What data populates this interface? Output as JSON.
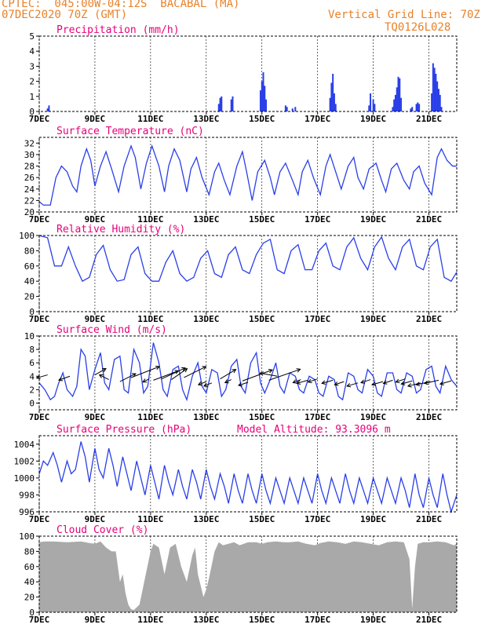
{
  "header": {
    "line1": "CPTEC:  045:00W-04:12S  BACABAL (MA)",
    "line2": "07DEC2020 70Z (GMT)",
    "grid_note": "Vertical Grid Line: 70Z",
    "code": "TQ0126L028"
  },
  "colors": {
    "header": "#e8822a",
    "title": "#e6007a",
    "series": "#2a3fe8",
    "cloud": "#a9a9a9",
    "axis": "#000000"
  },
  "x_axis": {
    "tick_labels": [
      "7DEC",
      "9DEC",
      "11DEC",
      "13DEC",
      "15DEC",
      "17DEC",
      "19DEC",
      "21DEC"
    ],
    "tick_days": [
      0,
      2,
      4,
      6,
      8,
      10,
      12,
      14
    ],
    "range_days": [
      0,
      15
    ]
  },
  "panels": [
    {
      "id": "precip",
      "title": "Precipitation (mm/h)",
      "extra": "",
      "ylim": [
        0,
        5
      ],
      "yticks": [
        0,
        1,
        2,
        3,
        4,
        5
      ],
      "type": "bar"
    },
    {
      "id": "temp",
      "title": "Surface Temperature (nC)",
      "extra": "",
      "ylim": [
        20,
        33
      ],
      "yticks": [
        20,
        22,
        24,
        26,
        28,
        30,
        32
      ],
      "type": "line"
    },
    {
      "id": "rh",
      "title": "Relative Humidity (%)",
      "extra": "",
      "ylim": [
        0,
        100
      ],
      "yticks": [
        0,
        20,
        40,
        60,
        80,
        100
      ],
      "type": "line"
    },
    {
      "id": "wind",
      "title": "Surface Wind (m/s)",
      "extra": "",
      "ylim": [
        -1,
        10
      ],
      "yticks": [
        0,
        2,
        4,
        6,
        8,
        10
      ],
      "type": "line"
    },
    {
      "id": "pres",
      "title": "Surface Pressure (hPa)",
      "extra": "Model Altitude: 93.3096 m",
      "ylim": [
        996,
        1005
      ],
      "yticks": [
        996,
        998,
        1000,
        1002,
        1004
      ],
      "type": "line"
    },
    {
      "id": "cloud",
      "title": "Cloud Cover (%)",
      "extra": "",
      "ylim": [
        0,
        100
      ],
      "yticks": [
        0,
        20,
        40,
        60,
        80,
        100
      ],
      "type": "area"
    }
  ],
  "chart_data": [
    {
      "type": "bar",
      "title": "Precipitation (mm/h)",
      "ylim": [
        0,
        5
      ],
      "x_unit": "days since 7DEC2020 00Z",
      "x": [
        0.3,
        0.35,
        6.45,
        6.5,
        6.55,
        6.9,
        6.95,
        7.95,
        8.0,
        8.05,
        8.1,
        8.15,
        8.85,
        8.9,
        9.1,
        9.2,
        10.45,
        10.5,
        10.55,
        10.6,
        10.65,
        11.85,
        11.9,
        12.0,
        12.05,
        12.7,
        12.75,
        12.8,
        12.85,
        12.9,
        12.95,
        13.0,
        13.35,
        13.4,
        13.55,
        13.6,
        13.65,
        14.1,
        14.15,
        14.2,
        14.25,
        14.3,
        14.35,
        14.4,
        14.45
      ],
      "y": [
        0.2,
        0.4,
        0.5,
        0.9,
        1.0,
        0.8,
        1.0,
        1.4,
        2.0,
        2.6,
        1.7,
        0.8,
        0.4,
        0.3,
        0.2,
        0.3,
        0.9,
        1.9,
        2.5,
        1.2,
        0.5,
        0.4,
        1.2,
        0.8,
        0.5,
        0.3,
        0.8,
        1.1,
        1.6,
        2.3,
        2.2,
        0.9,
        0.2,
        0.3,
        0.5,
        0.6,
        0.5,
        1.2,
        3.2,
        2.9,
        2.5,
        2.0,
        1.5,
        1.1,
        0.3
      ]
    },
    {
      "type": "line",
      "title": "Surface Temperature (nC)",
      "ylim": [
        20,
        33
      ],
      "x_unit": "days since 7DEC2020 00Z",
      "x": [
        0,
        0.15,
        0.4,
        0.6,
        0.8,
        1.0,
        1.2,
        1.35,
        1.5,
        1.7,
        1.85,
        2.0,
        2.2,
        2.4,
        2.6,
        2.85,
        3.05,
        3.3,
        3.45,
        3.65,
        3.85,
        4.05,
        4.3,
        4.5,
        4.65,
        4.85,
        5.05,
        5.3,
        5.45,
        5.65,
        5.85,
        6.1,
        6.3,
        6.45,
        6.65,
        6.85,
        7.1,
        7.3,
        7.45,
        7.65,
        7.85,
        8.1,
        8.3,
        8.45,
        8.65,
        8.85,
        9.1,
        9.3,
        9.45,
        9.65,
        9.85,
        10.1,
        10.3,
        10.45,
        10.65,
        10.85,
        11.1,
        11.3,
        11.45,
        11.65,
        11.85,
        12.1,
        12.3,
        12.45,
        12.65,
        12.85,
        13.1,
        13.3,
        13.45,
        13.65,
        13.85,
        14.1,
        14.3,
        14.45,
        14.65,
        14.85,
        15.0
      ],
      "y": [
        21.8,
        21.2,
        21.2,
        26,
        28,
        27,
        24.5,
        23.5,
        28,
        31,
        29,
        24.5,
        28,
        30.5,
        27.5,
        23.5,
        28,
        31.5,
        29.5,
        24,
        28.5,
        31.5,
        28,
        23.5,
        28,
        31,
        29,
        23.5,
        27.5,
        29.5,
        26,
        23,
        27,
        28.5,
        25.5,
        23,
        28,
        30.5,
        27,
        22,
        27,
        29,
        26,
        23,
        27,
        28.5,
        25.5,
        23,
        27,
        29,
        26,
        23,
        28,
        30,
        27,
        24,
        28,
        29.5,
        26,
        24,
        27.5,
        28.5,
        25.5,
        23.5,
        27.5,
        28.5,
        25.5,
        24,
        27,
        28,
        25,
        23,
        29.5,
        31,
        29,
        28,
        28
      ]
    },
    {
      "type": "line",
      "title": "Relative Humidity (%)",
      "ylim": [
        0,
        100
      ],
      "x_unit": "days since 7DEC2020 00Z",
      "x": [
        0,
        0.3,
        0.55,
        0.8,
        1.05,
        1.3,
        1.55,
        1.8,
        2.05,
        2.3,
        2.55,
        2.8,
        3.05,
        3.3,
        3.55,
        3.8,
        4.05,
        4.3,
        4.55,
        4.8,
        5.05,
        5.3,
        5.55,
        5.8,
        6.05,
        6.3,
        6.55,
        6.8,
        7.05,
        7.3,
        7.55,
        7.8,
        8.05,
        8.3,
        8.55,
        8.8,
        9.05,
        9.3,
        9.55,
        9.8,
        10.05,
        10.3,
        10.55,
        10.8,
        11.05,
        11.3,
        11.55,
        11.8,
        12.05,
        12.3,
        12.55,
        12.8,
        13.05,
        13.3,
        13.55,
        13.8,
        14.05,
        14.3,
        14.55,
        14.8,
        15.0
      ],
      "y": [
        100,
        97,
        60,
        60,
        85,
        60,
        40,
        45,
        75,
        87,
        55,
        40,
        42,
        75,
        85,
        50,
        40,
        40,
        65,
        80,
        50,
        40,
        45,
        70,
        80,
        50,
        45,
        75,
        85,
        55,
        50,
        75,
        90,
        95,
        55,
        50,
        80,
        88,
        55,
        55,
        80,
        90,
        60,
        55,
        85,
        97,
        70,
        55,
        85,
        98,
        70,
        55,
        85,
        95,
        60,
        55,
        85,
        95,
        45,
        40,
        52
      ]
    },
    {
      "type": "line",
      "title": "Surface Wind (m/s)",
      "ylim": [
        -1,
        10
      ],
      "x_unit": "days since 7DEC2020 00Z",
      "x": [
        0,
        0.2,
        0.4,
        0.55,
        0.7,
        0.85,
        1.0,
        1.2,
        1.35,
        1.5,
        1.65,
        1.8,
        2.0,
        2.2,
        2.35,
        2.5,
        2.7,
        2.9,
        3.05,
        3.2,
        3.4,
        3.6,
        3.75,
        3.9,
        4.1,
        4.3,
        4.45,
        4.6,
        4.8,
        5.0,
        5.15,
        5.3,
        5.5,
        5.7,
        5.85,
        6.0,
        6.2,
        6.4,
        6.55,
        6.7,
        6.9,
        7.1,
        7.25,
        7.4,
        7.6,
        7.8,
        7.95,
        8.1,
        8.3,
        8.5,
        8.65,
        8.8,
        9.0,
        9.2,
        9.35,
        9.5,
        9.7,
        9.9,
        10.05,
        10.2,
        10.4,
        10.6,
        10.75,
        10.9,
        11.1,
        11.3,
        11.45,
        11.6,
        11.8,
        12.0,
        12.15,
        12.3,
        12.5,
        12.7,
        12.85,
        13.0,
        13.2,
        13.4,
        13.55,
        13.7,
        13.9,
        14.1,
        14.25,
        14.4,
        14.6,
        14.8,
        15.0
      ],
      "y": [
        3,
        2,
        0.5,
        1,
        3,
        4.5,
        2,
        1,
        2.5,
        8,
        7,
        2,
        5,
        7.5,
        3,
        2,
        6.5,
        7,
        2,
        1.5,
        8,
        6,
        1.5,
        2.5,
        9,
        6,
        2,
        1,
        5,
        5.5,
        2,
        0.5,
        4,
        6,
        2.5,
        1.5,
        5,
        4.5,
        1,
        2,
        5.5,
        6.5,
        2.5,
        1.5,
        6,
        7.5,
        3,
        1.5,
        3.5,
        6,
        2.5,
        1.5,
        4.5,
        4,
        2,
        1.5,
        4,
        3.5,
        1.5,
        1,
        4,
        3.5,
        1,
        0.5,
        4.5,
        4,
        2,
        1.5,
        5,
        4,
        1.5,
        1,
        4.5,
        4.5,
        2,
        1.5,
        4.5,
        4,
        1.5,
        2,
        5,
        5.5,
        2.5,
        1.5,
        5.5,
        3.5,
        2.5
      ]
    },
    {
      "type": "line",
      "title": "Surface Pressure (hPa)",
      "annotation": "Model Altitude: 93.3096 m",
      "ylim": [
        996,
        1005
      ],
      "x_unit": "days since 7DEC2020 00Z",
      "x": [
        0,
        0.15,
        0.3,
        0.5,
        0.65,
        0.8,
        1.0,
        1.15,
        1.3,
        1.5,
        1.65,
        1.8,
        2.0,
        2.15,
        2.3,
        2.5,
        2.65,
        2.8,
        3.0,
        3.15,
        3.3,
        3.5,
        3.65,
        3.8,
        4.0,
        4.15,
        4.3,
        4.5,
        4.65,
        4.8,
        5.0,
        5.15,
        5.3,
        5.5,
        5.65,
        5.8,
        6.0,
        6.15,
        6.3,
        6.5,
        6.65,
        6.8,
        7.0,
        7.15,
        7.3,
        7.5,
        7.65,
        7.8,
        8.0,
        8.15,
        8.3,
        8.5,
        8.65,
        8.8,
        9.0,
        9.15,
        9.3,
        9.5,
        9.65,
        9.8,
        10.0,
        10.15,
        10.3,
        10.5,
        10.65,
        10.8,
        11.0,
        11.15,
        11.3,
        11.5,
        11.65,
        11.8,
        12.0,
        12.15,
        12.3,
        12.5,
        12.65,
        12.8,
        13.0,
        13.15,
        13.3,
        13.5,
        13.65,
        13.8,
        14.0,
        14.15,
        14.3,
        14.5,
        14.65,
        14.8,
        15.0
      ],
      "y": [
        1000.5,
        1002,
        1001.5,
        1003,
        1001.5,
        999.5,
        1002,
        1000.5,
        1001,
        1004.3,
        1002.5,
        999.5,
        1003.5,
        1001,
        1000,
        1003.5,
        1001.5,
        999,
        1002.5,
        1000.5,
        998.5,
        1002,
        1000,
        998,
        1001.5,
        999.5,
        997.5,
        1001.5,
        999.5,
        998,
        1001,
        999,
        997.5,
        1001,
        999.5,
        997.5,
        1001,
        999,
        997.5,
        1000.5,
        999,
        997,
        1000.5,
        998.5,
        997,
        1000.5,
        998.5,
        997,
        1000.5,
        998.5,
        997,
        1000,
        998.5,
        997,
        1000,
        998.5,
        997,
        1000,
        998.5,
        997,
        1000.5,
        998.5,
        997,
        1000,
        998.5,
        997,
        1000.5,
        998.5,
        997,
        1000,
        998.5,
        997,
        1000,
        998.5,
        997,
        1000,
        998.5,
        997,
        1000,
        998.5,
        996.5,
        1000.5,
        998,
        996.5,
        1000,
        998,
        996.5,
        1000.5,
        998,
        996,
        998
      ]
    },
    {
      "type": "area",
      "title": "Cloud Cover (%)",
      "ylim": [
        0,
        100
      ],
      "x_unit": "days since 7DEC2020 00Z",
      "x": [
        0,
        0.2,
        0.5,
        1.0,
        1.5,
        1.8,
        2.0,
        2.2,
        2.4,
        2.6,
        2.75,
        2.9,
        3.0,
        3.1,
        3.2,
        3.3,
        3.4,
        3.6,
        3.8,
        4.0,
        4.1,
        4.3,
        4.5,
        4.7,
        4.9,
        5.1,
        5.3,
        5.5,
        5.6,
        5.7,
        5.9,
        6.0,
        6.1,
        6.3,
        6.45,
        6.6,
        6.8,
        7.0,
        7.2,
        7.5,
        7.8,
        8.0,
        8.2,
        8.5,
        8.8,
        9.0,
        9.3,
        9.6,
        9.9,
        10.1,
        10.4,
        10.7,
        11.0,
        11.3,
        11.6,
        11.9,
        12.2,
        12.5,
        12.8,
        13.1,
        13.3,
        13.4,
        13.5,
        13.6,
        13.8,
        14.0,
        14.3,
        14.6,
        14.9,
        15.0
      ],
      "y": [
        92,
        93,
        93,
        92,
        93,
        91,
        90,
        93,
        85,
        80,
        80,
        40,
        50,
        25,
        10,
        4,
        3,
        10,
        45,
        80,
        90,
        85,
        50,
        85,
        90,
        60,
        40,
        75,
        85,
        50,
        20,
        30,
        45,
        80,
        92,
        88,
        90,
        92,
        88,
        92,
        92,
        90,
        92,
        93,
        92,
        92,
        93,
        90,
        88,
        91,
        93,
        92,
        90,
        93,
        92,
        90,
        88,
        92,
        93,
        92,
        70,
        5,
        60,
        90,
        92,
        92,
        93,
        92,
        88,
        90
      ]
    }
  ],
  "wind_arrows": {
    "note_x_days": [
      0.3,
      1.1,
      2.0,
      2.5,
      2.9,
      3.3,
      3.95,
      4.1,
      4.4,
      4.75,
      5.2,
      6.0,
      6.2,
      6.5,
      6.9,
      7.3,
      7.5,
      8.25,
      8.55,
      9.4,
      9.65,
      10.0,
      10.55,
      10.95,
      11.45,
      11.9,
      12.35,
      12.7,
      13.15,
      13.4,
      13.7,
      14.05,
      14.35,
      14.8
    ],
    "speed": [
      4.2,
      4.0,
      4.2,
      3.5,
      3.2,
      3.8,
      3.6,
      3.4,
      3.6,
      3.5,
      3.8,
      3.2,
      3.0,
      3.6,
      3.5,
      3.3,
      3.1,
      3.4,
      4.0,
      3.5,
      3.4,
      3.6,
      3.4,
      3.2,
      3.0,
      3.5,
      3.2,
      3.4,
      3.6,
      3.3,
      3.0,
      3.2,
      3.4,
      3.3
    ],
    "dx": [
      -14,
      -14,
      14,
      -12,
      20,
      36,
      -8,
      32,
      30,
      20,
      28,
      -10,
      -10,
      20,
      -8,
      38,
      -12,
      40,
      -22,
      -10,
      -14,
      -12,
      -14,
      -12,
      -14,
      -12,
      -14,
      -12,
      -12,
      -14,
      -16,
      -18,
      -18,
      -14
    ],
    "dy": [
      4,
      5,
      -8,
      -6,
      -10,
      -14,
      4,
      -12,
      -14,
      -14,
      -14,
      4,
      4,
      -12,
      4,
      -14,
      4,
      -14,
      -4,
      4,
      4,
      4,
      4,
      4,
      4,
      4,
      4,
      4,
      4,
      4,
      4,
      4,
      4,
      4
    ]
  }
}
